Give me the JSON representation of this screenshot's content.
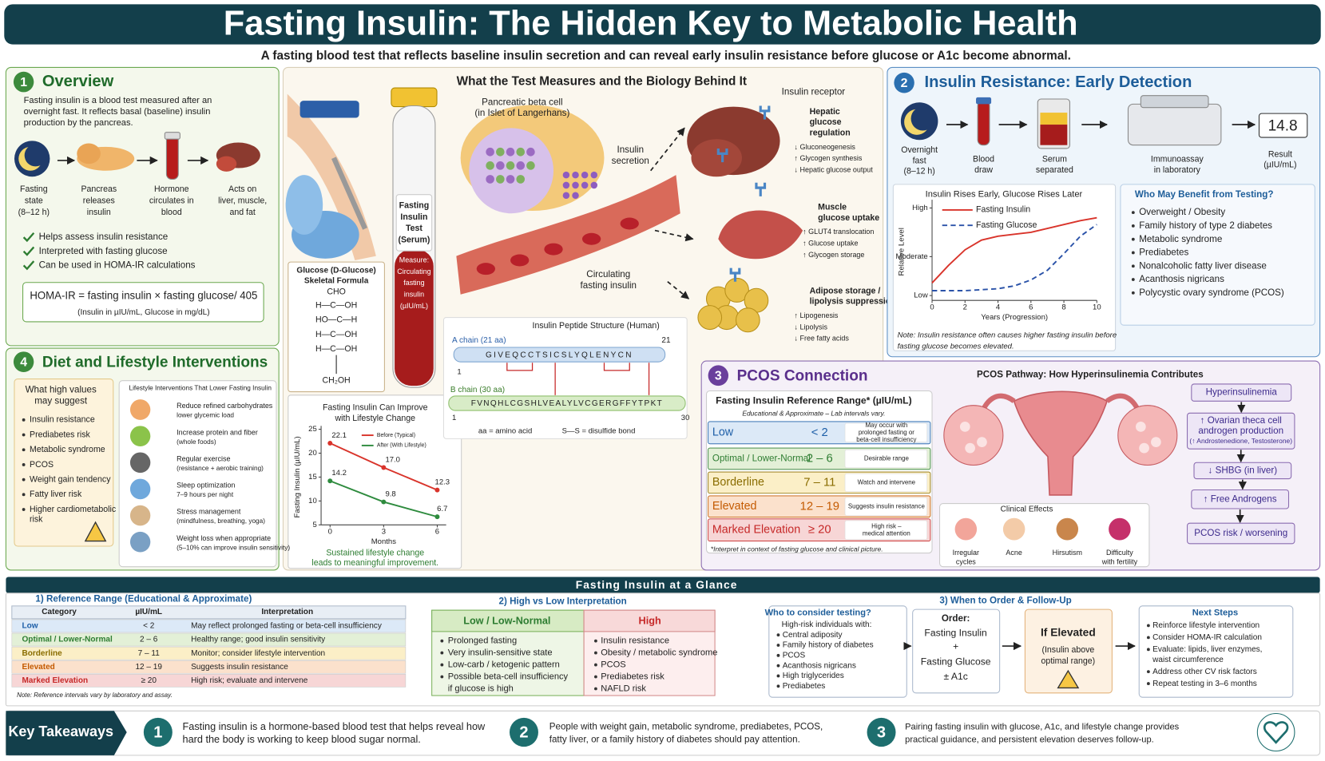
{
  "header": {
    "title": "Fasting Insulin: The Hidden Key to Metabolic Health",
    "subtitle": "A fasting blood test that reflects baseline insulin secretion and can reveal early insulin resistance before glucose or A1c become abnormal."
  },
  "overview": {
    "number": "1",
    "title": "Overview",
    "text": [
      "Fasting insulin is a blood test measured after an",
      "overnight fast. It reflects basal (baseline) insulin",
      "production by the pancreas."
    ],
    "steps": [
      [
        "Fasting",
        "state",
        "(8–12 h)"
      ],
      [
        "Pancreas",
        "releases",
        "insulin"
      ],
      [
        "Hormone",
        "circulates in",
        "blood"
      ],
      [
        "Acts on",
        "liver, muscle,",
        "and fat"
      ]
    ],
    "checks": [
      "Helps assess insulin resistance",
      "Interpreted with fasting glucose",
      "Can be used in HOMA-IR calculations"
    ],
    "formula": "HOMA-IR = fasting insulin × fasting glucose/ 405",
    "formula_note": "(Insulin in µIU/mL, Glucose in mg/dL)"
  },
  "biology": {
    "title": "What the Test Measures and the Biology Behind It",
    "tube_label": [
      "Fasting",
      "Insulin",
      "Test",
      "(Serum)"
    ],
    "tube_measure": [
      "Measure:",
      "Circulating",
      "fasting",
      "insulin",
      "(µIU/mL)"
    ],
    "beta_cell": [
      "Pancreatic beta cell",
      "(in Islet of Langerhans)"
    ],
    "secretion": [
      "Insulin",
      "secretion"
    ],
    "circulating": [
      "Circulating",
      "fasting insulin"
    ],
    "receptor": "Insulin receptor",
    "targets": [
      {
        "title": [
          "Hepatic",
          "glucose",
          "regulation"
        ],
        "effects": [
          "↓ Gluconeogenesis",
          "↑ Glycogen synthesis",
          "↓ Hepatic glucose output"
        ]
      },
      {
        "title": [
          "Muscle",
          "glucose uptake"
        ],
        "effects": [
          "↑ GLUT4 translocation",
          "↑ Glucose uptake",
          "↑ Glycogen storage"
        ]
      },
      {
        "title": [
          "Adipose storage /",
          "lipolysis suppression"
        ],
        "effects": [
          "↑ Lipogenesis",
          "↓ Lipolysis",
          "↓ Free fatty acids"
        ]
      }
    ],
    "glucose": {
      "title": [
        "Glucose (D-Glucose)",
        "Skeletal Formula"
      ],
      "formula": [
        "CHO",
        "H—C—OH",
        "HO—C—H",
        "H—C—OH",
        "H—C—OH",
        "CH₂OH"
      ]
    },
    "peptide": {
      "title": "Insulin Peptide Structure (Human)",
      "a_label": "A chain (21 aa)",
      "a_sequence": "GIVEQCCTSICSLYQLENYCN",
      "a_start": 1,
      "a_end": 21,
      "b_label": "B chain (30 aa)",
      "b_sequence": "FVNQHLCGSHLVEALYLVCGERGFFYTPKT",
      "b_start": 1,
      "b_end": 30,
      "key_aa": "aa = amino acid",
      "key_ss": "S—S = disulfide bond"
    },
    "lifestyle_caption": [
      "Sustained lifestyle change",
      "leads to meaningful improvement."
    ]
  },
  "chart_data": [
    {
      "type": "line",
      "title": [
        "Fasting Insulin Can Improve",
        "with Lifestyle Change"
      ],
      "x": [
        0,
        3,
        6
      ],
      "xlim": [
        -0.5,
        6.5
      ],
      "xticks": [
        0,
        3,
        6
      ],
      "ylim": [
        5,
        25
      ],
      "yticks": [
        5,
        10,
        15,
        20,
        25
      ],
      "xlabel": "Months",
      "ylabel": "Fasting Insulin (µIU/mL)",
      "markers": true,
      "series": [
        {
          "name": "Before (Typical)",
          "color": "#d9342b",
          "dash": false,
          "values": [
            22.1,
            17.0,
            12.3
          ],
          "value_labels": [
            "22.1",
            "17.0",
            "12.3"
          ]
        },
        {
          "name": "After (With Lifestyle)",
          "color": "#2e8b3e",
          "dash": false,
          "values": [
            14.2,
            9.8,
            6.7
          ],
          "value_labels": [
            "14.2",
            "9.8",
            "6.7"
          ]
        }
      ]
    },
    {
      "type": "line",
      "title": [
        "Insulin Rises Early, Glucose Rises Later"
      ],
      "x": [
        0,
        1,
        2,
        3,
        4,
        5,
        6,
        7,
        8,
        9,
        10
      ],
      "xlim": [
        0,
        10
      ],
      "xticks": [
        0,
        2,
        4,
        6,
        8,
        10
      ],
      "ylim": [
        0,
        10
      ],
      "yticks": [
        {
          "value": 0.5,
          "label": "Low"
        },
        {
          "value": 4.5,
          "label": "Moderate"
        },
        {
          "value": 9.5,
          "label": "High"
        }
      ],
      "xlabel": "Years (Progression)",
      "ylabel": "Relative Level",
      "markers": false,
      "series": [
        {
          "name": "Fasting Insulin",
          "color": "#d9342b",
          "dash": false,
          "values": [
            1.8,
            3.6,
            5.2,
            6.2,
            6.6,
            6.8,
            7.0,
            7.4,
            7.8,
            8.2,
            8.5
          ]
        },
        {
          "name": "Fasting Glucose",
          "color": "#2a52a8",
          "dash": true,
          "values": [
            1.0,
            1.0,
            1.0,
            1.1,
            1.2,
            1.5,
            2.1,
            3.1,
            4.8,
            6.6,
            7.8
          ]
        }
      ]
    }
  ],
  "detection": {
    "number": "2",
    "title": "Insulin Resistance: Early Detection",
    "steps": [
      [
        "Overnight",
        "fast",
        "(8–12 h)"
      ],
      [
        "Blood",
        "draw"
      ],
      [
        "Serum",
        "separated"
      ],
      [
        "Immunoassay",
        "in laboratory"
      ]
    ],
    "result": 14.8,
    "result_label": [
      "Result",
      "(µIU/mL)"
    ],
    "benefit_title": "Who May Benefit from Testing?",
    "benefit": [
      "Overweight / Obesity",
      "Family history of type 2 diabetes",
      "Metabolic syndrome",
      "Prediabetes",
      "Nonalcoholic fatty liver disease",
      "Acanthosis nigricans",
      "Polycystic ovary syndrome (PCOS)"
    ],
    "note": [
      "Note: Insulin resistance often causes higher fasting insulin before",
      "fasting glucose becomes elevated."
    ]
  },
  "pcos": {
    "number": "3",
    "title": "PCOS Connection",
    "range_title": "Fasting Insulin Reference Range* (µIU/mL)",
    "range_subtitle": "Educational & Approximate – Lab intervals vary.",
    "ranges": [
      {
        "category": "Low",
        "range": "< 2",
        "meaning": [
          "May occur with",
          "prolonged fasting or",
          "beta-cell insufficiency"
        ]
      },
      {
        "category": "Optimal / Lower-Normal",
        "range": "2 – 6",
        "meaning": [
          "Desirable range"
        ]
      },
      {
        "category": "Borderline",
        "range": "7 – 11",
        "meaning": [
          "Watch and intervene"
        ]
      },
      {
        "category": "Elevated",
        "range": "12 – 19",
        "meaning": [
          "Suggests insulin resistance"
        ]
      },
      {
        "category": "Marked Elevation",
        "range": "≥ 20",
        "meaning": [
          "High risk –",
          "medical attention"
        ]
      }
    ],
    "range_footnote": "*Interpret in context of fasting glucose and clinical picture.",
    "pathway_title": "PCOS Pathway: How Hyperinsulinemia Contributes",
    "pathway": [
      [
        "Hyperinsulinemia"
      ],
      [
        "↑ Ovarian theca cell",
        "androgen production",
        "(↑ Androstenedione, Testosterone)"
      ],
      [
        "↓ SHBG (in liver)"
      ],
      [
        "↑ Free Androgens"
      ],
      [
        "PCOS risk / worsening"
      ]
    ],
    "effects_title": "Clinical Effects",
    "effects": [
      [
        "Irregular",
        "cycles"
      ],
      [
        "Acne"
      ],
      [
        "Hirsutism"
      ],
      [
        "Difficulty",
        "with fertility"
      ]
    ]
  },
  "lifestyle": {
    "number": "4",
    "title": "Diet and Lifestyle Interventions",
    "suggest_title": [
      "What high values",
      "may suggest"
    ],
    "suggest": [
      [
        "Insulin resistance"
      ],
      [
        "Prediabetes risk"
      ],
      [
        "Metabolic syndrome"
      ],
      [
        "PCOS"
      ],
      [
        "Weight gain tendency"
      ],
      [
        "Fatty liver risk"
      ],
      [
        "Higher cardiometabolic",
        "risk"
      ]
    ],
    "interventions_title": "Lifestyle Interventions That Lower Fasting Insulin",
    "interventions": [
      {
        "title": "Reduce refined carbohydrates",
        "detail": "lower glycemic load"
      },
      {
        "title": "Increase protein and fiber",
        "detail": "(whole foods)"
      },
      {
        "title": "Regular exercise",
        "detail": "(resistance + aerobic training)"
      },
      {
        "title": "Sleep optimization",
        "detail": "7–9 hours per night"
      },
      {
        "title": "Stress management",
        "detail": "(mindfulness, breathing, yoga)"
      },
      {
        "title": "Weight loss when appropriate",
        "detail": "(5–10% can improve insulin sensitivity)"
      }
    ]
  },
  "glance": {
    "title": "Fasting Insulin at a Glance",
    "reference": {
      "title": "1) Reference Range (Educational & Approximate)",
      "headers": [
        "Category",
        "µIU/mL",
        "Interpretation"
      ],
      "rows": [
        [
          "Low",
          "< 2",
          "May reflect prolonged fasting or beta-cell insufficiency"
        ],
        [
          "Optimal / Lower-Normal",
          "2 – 6",
          "Healthy range; good insulin sensitivity"
        ],
        [
          "Borderline",
          "7 – 11",
          "Monitor; consider lifestyle intervention"
        ],
        [
          "Elevated",
          "12 – 19",
          "Suggests insulin resistance"
        ],
        [
          "Marked Elevation",
          "≥ 20",
          "High risk; evaluate and intervene"
        ]
      ],
      "note": "Note: Reference intervals vary by laboratory and assay."
    },
    "interpretation": {
      "title": "2) High vs Low Interpretation",
      "low_title": "Low / Low-Normal",
      "low": [
        [
          "Prolonged fasting"
        ],
        [
          "Very insulin-sensitive state"
        ],
        [
          "Low-carb / ketogenic pattern"
        ],
        [
          "Possible beta-cell insufficiency",
          "if glucose is high"
        ]
      ],
      "high_title": "High",
      "high": [
        [
          "Insulin resistance"
        ],
        [
          "Obesity / metabolic syndrome"
        ],
        [
          "PCOS"
        ],
        [
          "Prediabetes risk"
        ],
        [
          "NAFLD risk"
        ]
      ]
    },
    "followup": {
      "title": "3) When to Order & Follow-Up",
      "who_title": "Who to consider testing?",
      "who_subtitle": "High-risk individuals with:",
      "who": [
        "Central adiposity",
        "Family history of diabetes",
        "PCOS",
        "Acanthosis nigricans",
        "High triglycerides",
        "Prediabetes"
      ],
      "order_title": "Order:",
      "order": [
        "Fasting Insulin",
        "+",
        "Fasting Glucose",
        "± A1c"
      ],
      "elevated_title": "If Elevated",
      "elevated": [
        "(Insulin above",
        "optimal range)"
      ],
      "next_title": "Next Steps",
      "next": [
        [
          "Reinforce lifestyle intervention"
        ],
        [
          "Consider HOMA-IR calculation"
        ],
        [
          "Evaluate: lipids, liver enzymes,",
          "waist circumference"
        ],
        [
          "Address other CV risk factors"
        ],
        [
          "Repeat testing in 3–6 months"
        ]
      ]
    }
  },
  "takeaways": {
    "title": "Key Takeaways",
    "items": [
      {
        "number": "1",
        "text": [
          "Fasting insulin is a hormone-based blood test that helps reveal how",
          "hard the body is working to keep blood sugar normal."
        ]
      },
      {
        "number": "2",
        "text": [
          "People with weight gain, metabolic syndrome, prediabetes, PCOS,",
          "fatty liver, or a family history of diabetes should pay attention."
        ]
      },
      {
        "number": "3",
        "text": [
          "Pairing fasting insulin with glucose, A1c, and lifestyle change provides",
          "practical guidance, and persistent elevation deserves follow-up."
        ]
      }
    ]
  }
}
